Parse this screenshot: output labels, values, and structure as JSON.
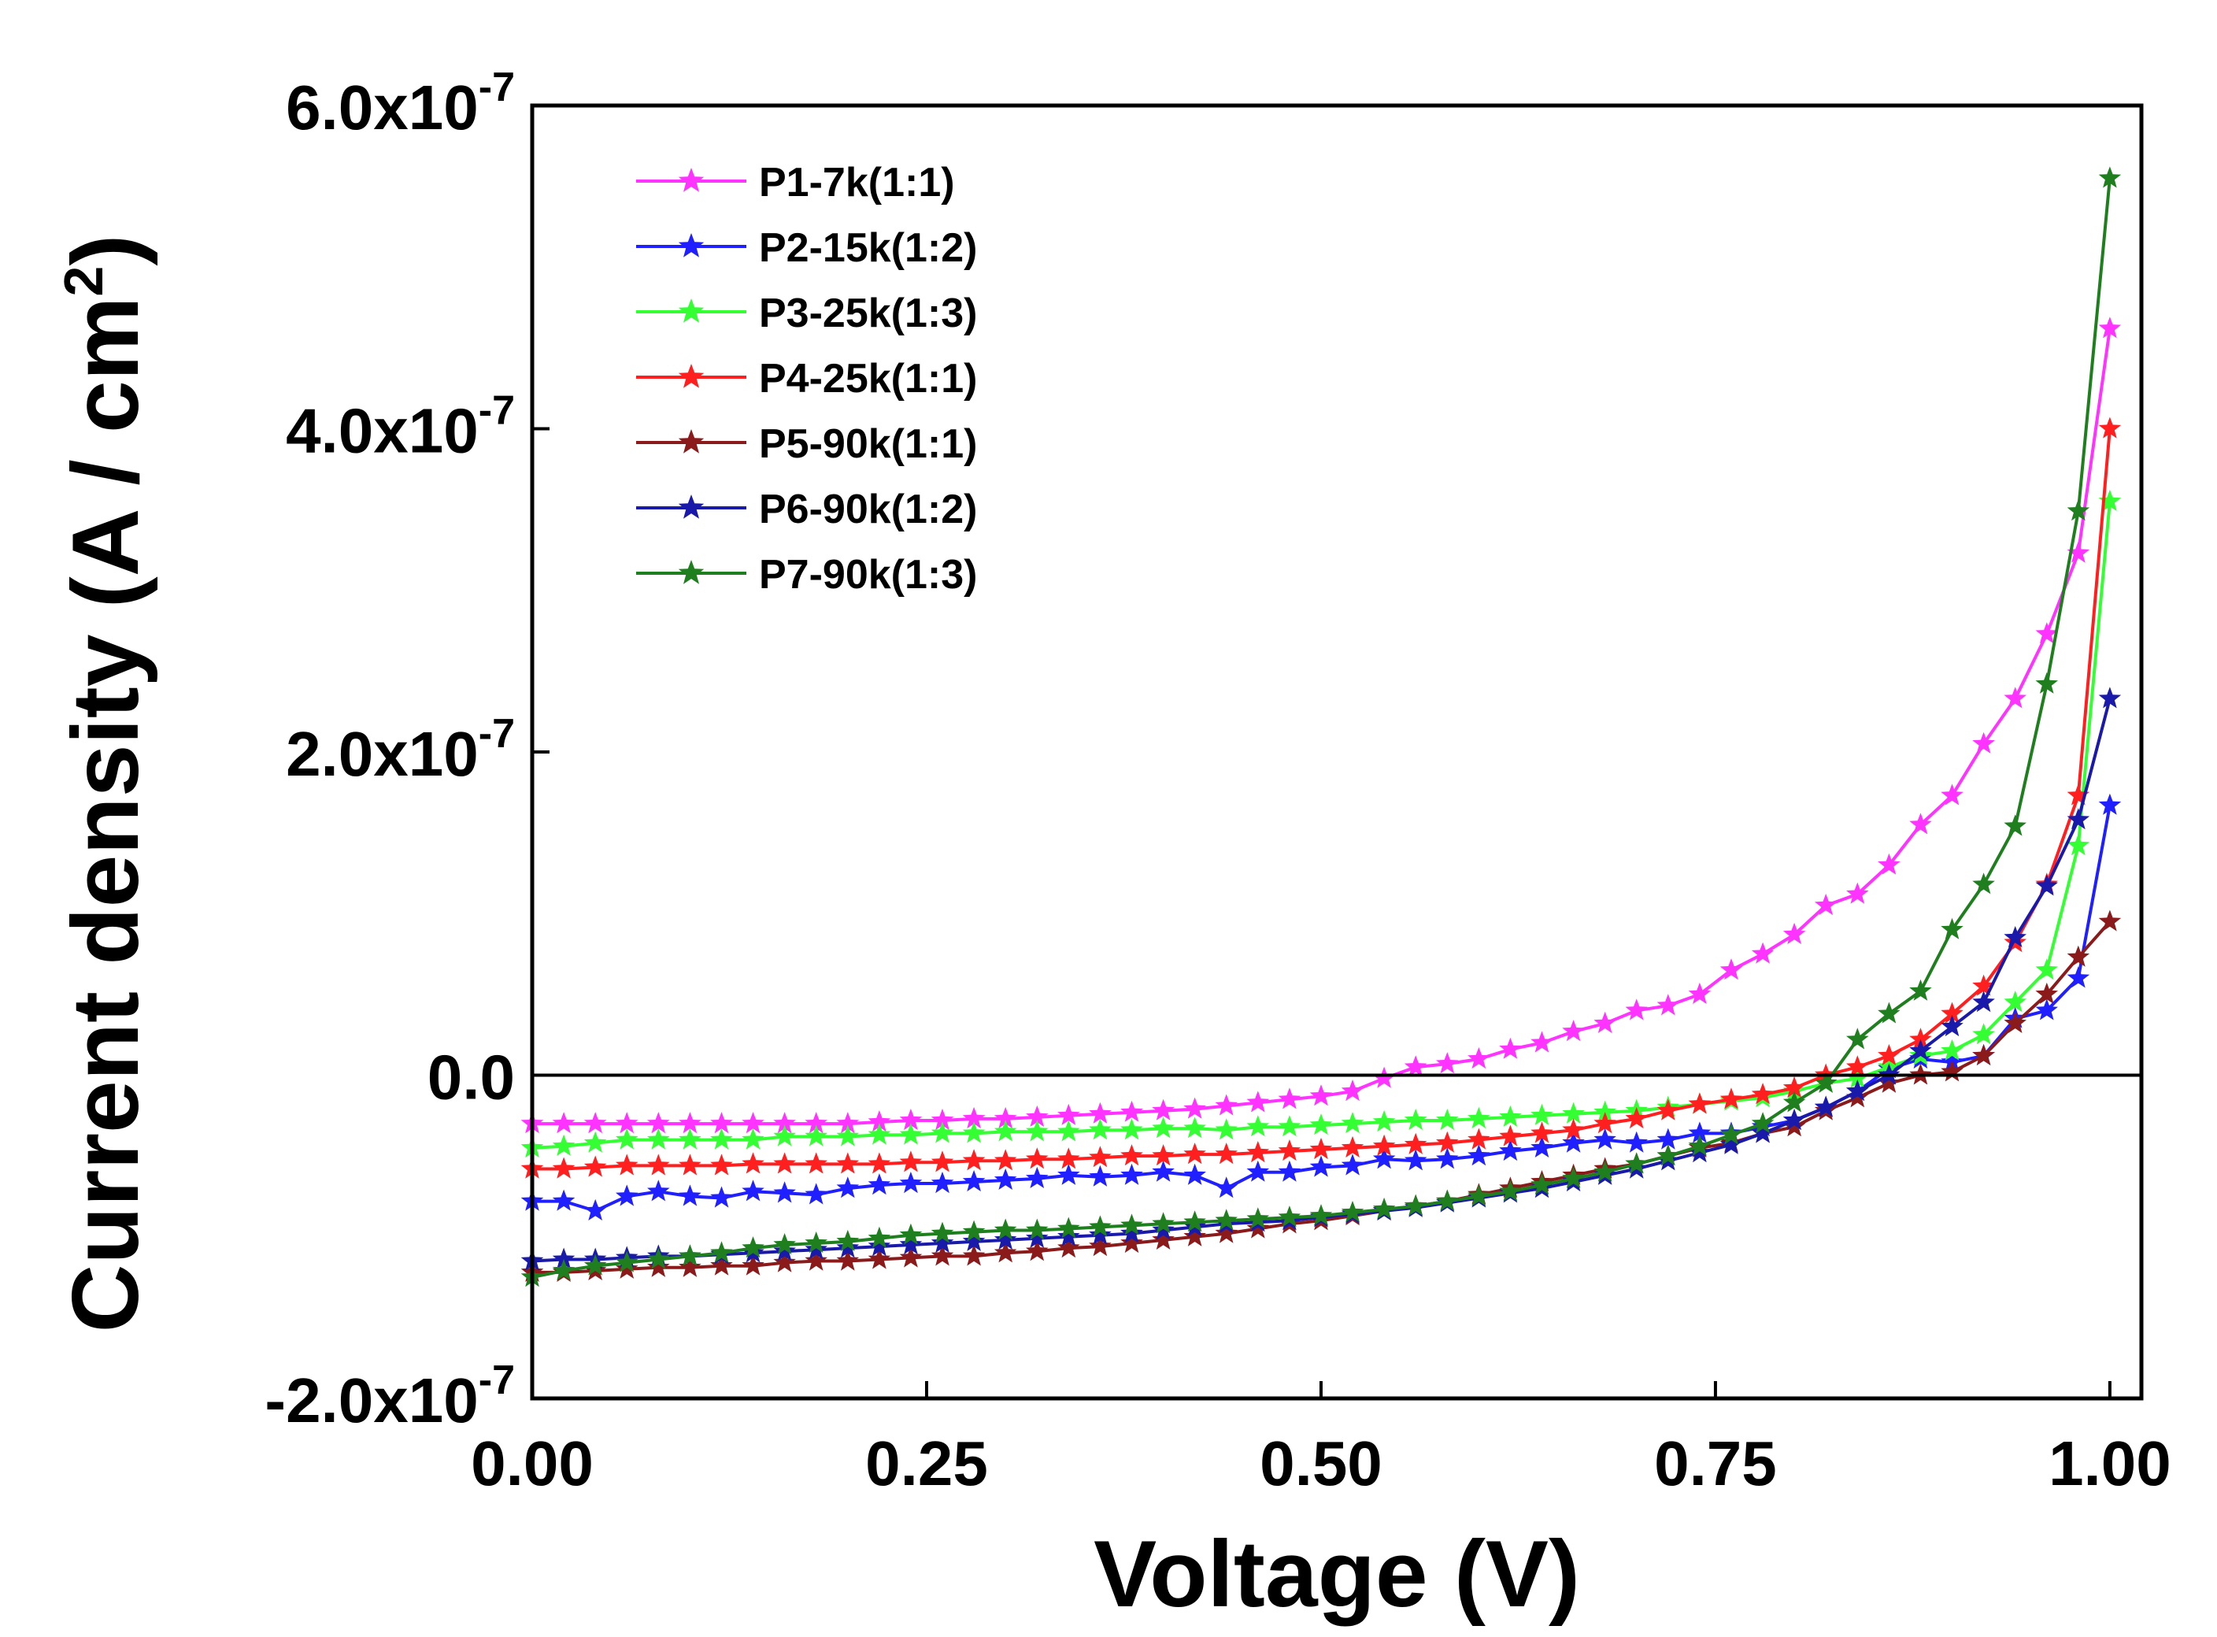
{
  "chart_data": {
    "type": "line",
    "xlabel": "Voltage  (V)",
    "ylabel_main": "Current  density  (A / cm",
    "ylabel_sup": "2",
    "ylabel_close": ")",
    "xlim": [
      0.0,
      1.02
    ],
    "ylim": [
      -2e-07,
      6e-07
    ],
    "xticks": [
      0.0,
      0.25,
      0.5,
      0.75,
      1.0
    ],
    "xtick_labels": [
      "0.00",
      "0.25",
      "0.50",
      "0.75",
      "1.00"
    ],
    "yticks": [
      -2e-07,
      0.0,
      2e-07,
      4e-07,
      6e-07
    ],
    "ytick_labels": [
      {
        "mant": "-2.0x10",
        "exp": "-7"
      },
      {
        "mant": "0.0",
        "exp": ""
      },
      {
        "mant": "2.0x10",
        "exp": "-7"
      },
      {
        "mant": "4.0x10",
        "exp": "-7"
      },
      {
        "mant": "6.0x10",
        "exp": "-7"
      }
    ],
    "zero_line": true,
    "legend_position": "top-left",
    "units_scale": 1e-07,
    "series": [
      {
        "name": "P1-7k(1:1)",
        "color": "#ff33ff",
        "x": [
          0.0,
          0.02,
          0.04,
          0.06,
          0.08,
          0.1,
          0.12,
          0.14,
          0.16,
          0.18,
          0.2,
          0.22,
          0.24,
          0.26,
          0.28,
          0.3,
          0.32,
          0.34,
          0.36,
          0.38,
          0.4,
          0.42,
          0.44,
          0.46,
          0.48,
          0.5,
          0.52,
          0.54,
          0.56,
          0.58,
          0.6,
          0.62,
          0.64,
          0.66,
          0.68,
          0.7,
          0.72,
          0.74,
          0.76,
          0.78,
          0.8,
          0.82,
          0.84,
          0.86,
          0.88,
          0.9,
          0.92,
          0.94,
          0.96,
          0.98,
          1.0
        ],
        "y": [
          -0.3,
          -0.3,
          -0.3,
          -0.3,
          -0.3,
          -0.3,
          -0.3,
          -0.3,
          -0.3,
          -0.3,
          -0.3,
          -0.29,
          -0.28,
          -0.28,
          -0.27,
          -0.27,
          -0.26,
          -0.25,
          -0.24,
          -0.23,
          -0.22,
          -0.21,
          -0.19,
          -0.17,
          -0.15,
          -0.13,
          -0.1,
          -0.02,
          0.05,
          0.07,
          0.1,
          0.16,
          0.2,
          0.27,
          0.32,
          0.4,
          0.43,
          0.5,
          0.65,
          0.75,
          0.87,
          1.05,
          1.12,
          1.3,
          1.55,
          1.73,
          2.05,
          2.33,
          2.73,
          3.23,
          4.62
        ]
      },
      {
        "name": "P2-15k(1:2)",
        "color": "#1f1fff",
        "x": [
          0.0,
          0.02,
          0.04,
          0.06,
          0.08,
          0.1,
          0.12,
          0.14,
          0.16,
          0.18,
          0.2,
          0.22,
          0.24,
          0.26,
          0.28,
          0.3,
          0.32,
          0.34,
          0.36,
          0.38,
          0.4,
          0.42,
          0.44,
          0.46,
          0.48,
          0.5,
          0.52,
          0.54,
          0.56,
          0.58,
          0.6,
          0.62,
          0.64,
          0.66,
          0.68,
          0.7,
          0.72,
          0.74,
          0.76,
          0.78,
          0.8,
          0.82,
          0.84,
          0.86,
          0.88,
          0.9,
          0.92,
          0.94,
          0.96,
          0.98,
          1.0
        ],
        "y": [
          -0.78,
          -0.78,
          -0.84,
          -0.75,
          -0.72,
          -0.75,
          -0.76,
          -0.72,
          -0.73,
          -0.74,
          -0.7,
          -0.68,
          -0.67,
          -0.67,
          -0.66,
          -0.65,
          -0.64,
          -0.62,
          -0.63,
          -0.62,
          -0.6,
          -0.62,
          -0.7,
          -0.6,
          -0.6,
          -0.57,
          -0.56,
          -0.52,
          -0.53,
          -0.52,
          -0.5,
          -0.47,
          -0.45,
          -0.42,
          -0.4,
          -0.42,
          -0.4,
          -0.36,
          -0.36,
          -0.32,
          -0.28,
          -0.2,
          -0.1,
          0.04,
          0.1,
          0.08,
          0.12,
          0.35,
          0.4,
          0.6,
          1.67
        ]
      },
      {
        "name": "P3-25k(1:3)",
        "color": "#33ff33",
        "x": [
          0.0,
          0.02,
          0.04,
          0.06,
          0.08,
          0.1,
          0.12,
          0.14,
          0.16,
          0.18,
          0.2,
          0.22,
          0.24,
          0.26,
          0.28,
          0.3,
          0.32,
          0.34,
          0.36,
          0.38,
          0.4,
          0.42,
          0.44,
          0.46,
          0.48,
          0.5,
          0.52,
          0.54,
          0.56,
          0.58,
          0.6,
          0.62,
          0.64,
          0.66,
          0.68,
          0.7,
          0.72,
          0.74,
          0.76,
          0.78,
          0.8,
          0.82,
          0.84,
          0.86,
          0.88,
          0.9,
          0.92,
          0.94,
          0.96,
          0.98,
          1.0
        ],
        "y": [
          -0.45,
          -0.44,
          -0.42,
          -0.4,
          -0.4,
          -0.4,
          -0.4,
          -0.4,
          -0.38,
          -0.38,
          -0.38,
          -0.37,
          -0.37,
          -0.36,
          -0.36,
          -0.35,
          -0.35,
          -0.35,
          -0.34,
          -0.34,
          -0.33,
          -0.33,
          -0.34,
          -0.32,
          -0.32,
          -0.31,
          -0.3,
          -0.29,
          -0.28,
          -0.28,
          -0.27,
          -0.26,
          -0.25,
          -0.24,
          -0.23,
          -0.22,
          -0.2,
          -0.18,
          -0.16,
          -0.14,
          -0.1,
          -0.05,
          -0.02,
          0.05,
          0.12,
          0.15,
          0.25,
          0.45,
          0.65,
          1.42,
          3.55
        ]
      },
      {
        "name": "P4-25k(1:1)",
        "color": "#ff1f1f",
        "x": [
          0.0,
          0.02,
          0.04,
          0.06,
          0.08,
          0.1,
          0.12,
          0.14,
          0.16,
          0.18,
          0.2,
          0.22,
          0.24,
          0.26,
          0.28,
          0.3,
          0.32,
          0.34,
          0.36,
          0.38,
          0.4,
          0.42,
          0.44,
          0.46,
          0.48,
          0.5,
          0.52,
          0.54,
          0.56,
          0.58,
          0.6,
          0.62,
          0.64,
          0.66,
          0.68,
          0.7,
          0.72,
          0.74,
          0.76,
          0.78,
          0.8,
          0.82,
          0.84,
          0.86,
          0.88,
          0.9,
          0.92,
          0.94,
          0.96,
          0.98,
          1.0
        ],
        "y": [
          -0.58,
          -0.58,
          -0.57,
          -0.56,
          -0.56,
          -0.56,
          -0.56,
          -0.55,
          -0.55,
          -0.55,
          -0.55,
          -0.55,
          -0.54,
          -0.54,
          -0.53,
          -0.53,
          -0.52,
          -0.52,
          -0.51,
          -0.5,
          -0.5,
          -0.49,
          -0.49,
          -0.48,
          -0.47,
          -0.46,
          -0.45,
          -0.44,
          -0.43,
          -0.42,
          -0.4,
          -0.38,
          -0.36,
          -0.34,
          -0.3,
          -0.27,
          -0.22,
          -0.18,
          -0.15,
          -0.12,
          -0.08,
          0.0,
          0.05,
          0.12,
          0.22,
          0.38,
          0.55,
          0.82,
          1.18,
          1.73,
          4.0
        ]
      },
      {
        "name": "P5-90k(1:1)",
        "color": "#8b1a1a",
        "x": [
          0.0,
          0.02,
          0.04,
          0.06,
          0.08,
          0.1,
          0.12,
          0.14,
          0.16,
          0.18,
          0.2,
          0.22,
          0.24,
          0.26,
          0.28,
          0.3,
          0.32,
          0.34,
          0.36,
          0.38,
          0.4,
          0.42,
          0.44,
          0.46,
          0.48,
          0.5,
          0.52,
          0.54,
          0.56,
          0.58,
          0.6,
          0.62,
          0.64,
          0.66,
          0.68,
          0.7,
          0.72,
          0.74,
          0.76,
          0.78,
          0.8,
          0.82,
          0.84,
          0.86,
          0.88,
          0.9,
          0.92,
          0.94,
          0.96,
          0.98,
          1.0
        ],
        "y": [
          -1.22,
          -1.22,
          -1.21,
          -1.2,
          -1.19,
          -1.19,
          -1.18,
          -1.18,
          -1.16,
          -1.15,
          -1.15,
          -1.14,
          -1.13,
          -1.12,
          -1.12,
          -1.1,
          -1.09,
          -1.07,
          -1.06,
          -1.04,
          -1.02,
          -1.0,
          -0.98,
          -0.95,
          -0.92,
          -0.9,
          -0.87,
          -0.84,
          -0.81,
          -0.78,
          -0.74,
          -0.7,
          -0.66,
          -0.62,
          -0.58,
          -0.55,
          -0.5,
          -0.45,
          -0.42,
          -0.36,
          -0.32,
          -0.22,
          -0.14,
          -0.05,
          0.0,
          0.02,
          0.12,
          0.32,
          0.5,
          0.73,
          0.95
        ]
      },
      {
        "name": "P6-90k(1:2)",
        "color": "#1a1aaa",
        "x": [
          0.0,
          0.02,
          0.04,
          0.06,
          0.08,
          0.1,
          0.12,
          0.14,
          0.16,
          0.18,
          0.2,
          0.22,
          0.24,
          0.26,
          0.28,
          0.3,
          0.32,
          0.34,
          0.36,
          0.38,
          0.4,
          0.42,
          0.44,
          0.46,
          0.48,
          0.5,
          0.52,
          0.54,
          0.56,
          0.58,
          0.6,
          0.62,
          0.64,
          0.66,
          0.68,
          0.7,
          0.72,
          0.74,
          0.76,
          0.78,
          0.8,
          0.82,
          0.84,
          0.86,
          0.88,
          0.9,
          0.92,
          0.94,
          0.96,
          0.98,
          1.0
        ],
        "y": [
          -1.15,
          -1.14,
          -1.14,
          -1.13,
          -1.12,
          -1.12,
          -1.11,
          -1.1,
          -1.09,
          -1.08,
          -1.07,
          -1.06,
          -1.05,
          -1.04,
          -1.03,
          -1.02,
          -1.01,
          -1.0,
          -0.99,
          -0.98,
          -0.96,
          -0.94,
          -0.92,
          -0.91,
          -0.9,
          -0.88,
          -0.86,
          -0.84,
          -0.82,
          -0.79,
          -0.76,
          -0.73,
          -0.7,
          -0.66,
          -0.62,
          -0.58,
          -0.53,
          -0.48,
          -0.43,
          -0.36,
          -0.28,
          -0.2,
          -0.1,
          0.0,
          0.15,
          0.3,
          0.45,
          0.85,
          1.17,
          1.58,
          2.33
        ]
      },
      {
        "name": "P7-90k(1:3)",
        "color": "#1f7f1f",
        "x": [
          0.0,
          0.02,
          0.04,
          0.06,
          0.08,
          0.1,
          0.12,
          0.14,
          0.16,
          0.18,
          0.2,
          0.22,
          0.24,
          0.26,
          0.28,
          0.3,
          0.32,
          0.34,
          0.36,
          0.38,
          0.4,
          0.42,
          0.44,
          0.46,
          0.48,
          0.5,
          0.52,
          0.54,
          0.56,
          0.58,
          0.6,
          0.62,
          0.64,
          0.66,
          0.68,
          0.7,
          0.72,
          0.74,
          0.76,
          0.78,
          0.8,
          0.82,
          0.84,
          0.86,
          0.88,
          0.9,
          0.92,
          0.94,
          0.96,
          0.98,
          1.0
        ],
        "y": [
          -1.25,
          -1.21,
          -1.18,
          -1.16,
          -1.14,
          -1.12,
          -1.1,
          -1.07,
          -1.05,
          -1.04,
          -1.03,
          -1.01,
          -0.99,
          -0.98,
          -0.97,
          -0.96,
          -0.96,
          -0.95,
          -0.94,
          -0.93,
          -0.92,
          -0.91,
          -0.9,
          -0.89,
          -0.88,
          -0.87,
          -0.85,
          -0.83,
          -0.81,
          -0.78,
          -0.75,
          -0.72,
          -0.68,
          -0.64,
          -0.6,
          -0.55,
          -0.5,
          -0.44,
          -0.37,
          -0.3,
          -0.17,
          -0.05,
          0.22,
          0.38,
          0.52,
          0.9,
          1.18,
          1.54,
          2.42,
          3.49,
          5.55
        ]
      }
    ]
  }
}
